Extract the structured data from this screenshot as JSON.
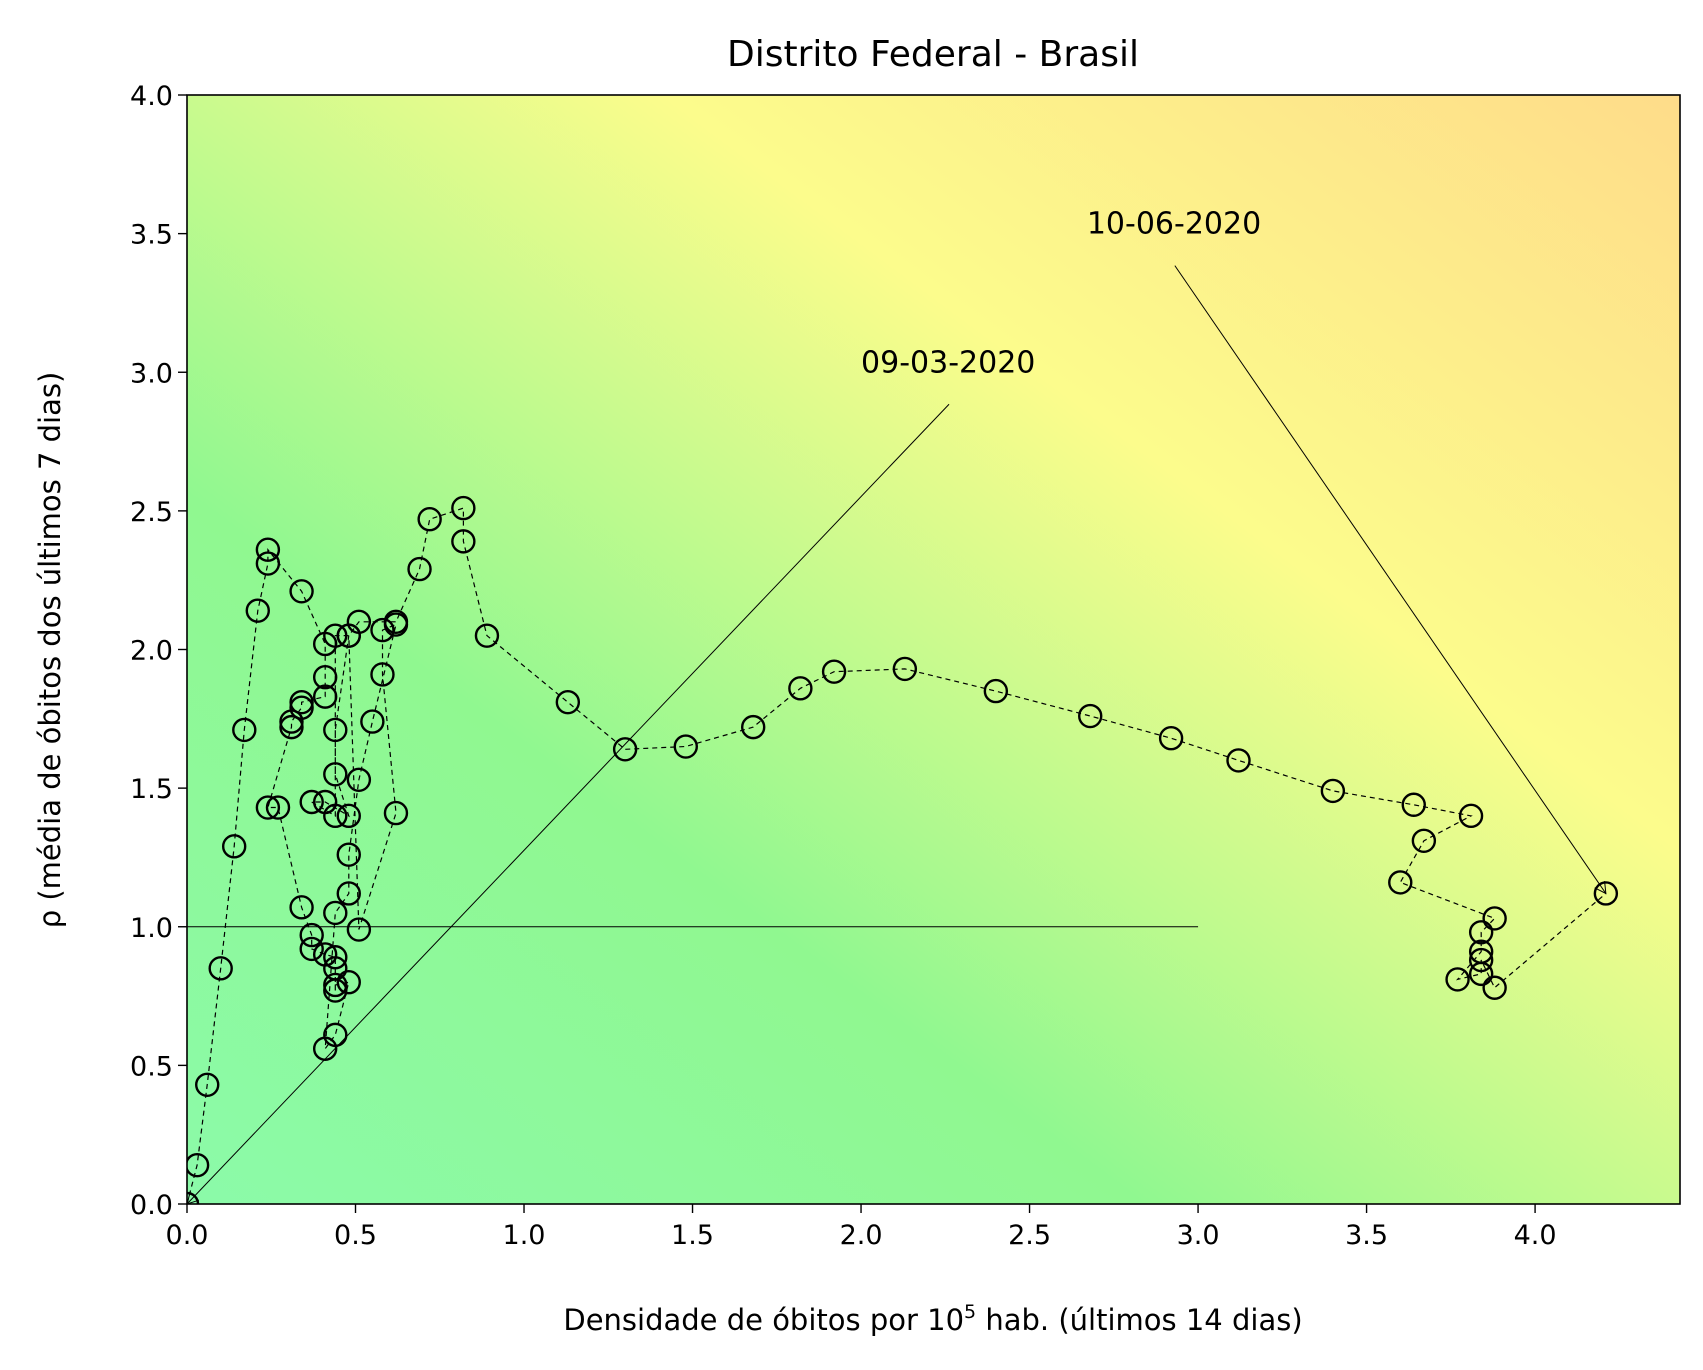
{
  "chart_data": {
    "type": "scatter",
    "title": "Distrito Federal - Brasil",
    "xlabel": "Densidade de óbitos por 10",
    "xlabel_sup": "5",
    "xlabel_suffix": " hab. (últimos 14 dias)",
    "ylabel": "ρ (média de óbitos dos últimos 7 dias)",
    "xlim": [
      0,
      4.43
    ],
    "ylim": [
      0,
      4.0
    ],
    "xticks": [
      0.0,
      0.5,
      1.0,
      1.5,
      2.0,
      2.5,
      3.0,
      3.5,
      4.0
    ],
    "xtick_labels": [
      "0.0",
      "0.5",
      "1.0",
      "1.5",
      "2.0",
      "2.5",
      "3.0",
      "3.5",
      "4.0"
    ],
    "yticks": [
      0.0,
      0.5,
      1.0,
      1.5,
      2.0,
      2.5,
      3.0,
      3.5,
      4.0
    ],
    "ytick_labels": [
      "0.0",
      "0.5",
      "1.0",
      "1.5",
      "2.0",
      "2.5",
      "3.0",
      "3.5",
      "4.0"
    ],
    "grid": false,
    "reference_line": {
      "x": [
        0,
        3.0
      ],
      "y": [
        1.0,
        1.0
      ]
    },
    "annotations": [
      {
        "text": "09-03-2020",
        "text_x": 2.0,
        "text_y": 3.0,
        "point_x": 0.0,
        "point_y": 0.0
      },
      {
        "text": "10-06-2020",
        "text_x": 2.67,
        "text_y": 3.5,
        "point_x": 4.21,
        "point_y": 1.12
      }
    ],
    "series": [
      {
        "x": [
          0.0,
          0.03,
          0.06,
          0.1,
          0.14,
          0.17,
          0.21,
          0.24,
          0.24,
          0.34,
          0.41,
          0.41,
          0.41,
          0.34,
          0.34,
          0.31,
          0.31,
          0.24,
          0.27,
          0.34,
          0.37,
          0.37,
          0.41,
          0.44,
          0.44,
          0.44,
          0.44,
          0.48,
          0.44,
          0.41,
          0.44,
          0.48,
          0.48,
          0.51,
          0.55,
          0.62,
          0.58,
          0.58,
          0.62,
          0.51,
          0.48,
          0.44,
          0.44,
          0.48,
          0.41,
          0.37,
          0.44,
          0.44,
          0.48,
          0.51,
          0.62,
          0.69,
          0.72,
          0.82,
          0.82,
          0.89,
          1.13,
          1.3,
          1.48,
          1.68,
          1.82,
          1.92,
          2.13,
          2.4,
          2.68,
          2.92,
          3.12,
          3.4,
          3.64,
          3.81,
          3.67,
          3.6,
          3.88,
          3.84,
          3.84,
          3.77,
          3.84,
          3.84,
          3.88,
          4.21
        ],
        "y": [
          0.0,
          0.14,
          0.43,
          0.85,
          1.29,
          1.71,
          2.14,
          2.31,
          2.36,
          2.21,
          2.02,
          1.9,
          1.83,
          1.81,
          1.79,
          1.74,
          1.72,
          1.43,
          1.43,
          1.07,
          0.97,
          0.92,
          0.9,
          0.89,
          0.85,
          0.77,
          0.79,
          0.8,
          0.61,
          0.56,
          1.05,
          1.12,
          1.26,
          1.53,
          1.74,
          2.09,
          2.07,
          1.91,
          1.41,
          0.99,
          2.05,
          1.71,
          1.55,
          1.4,
          1.45,
          1.45,
          1.4,
          2.05,
          2.05,
          2.1,
          2.1,
          2.29,
          2.47,
          2.51,
          2.39,
          2.05,
          1.81,
          1.64,
          1.65,
          1.72,
          1.86,
          1.92,
          1.93,
          1.85,
          1.76,
          1.68,
          1.6,
          1.49,
          1.44,
          1.4,
          1.31,
          1.16,
          1.03,
          0.98,
          0.91,
          0.81,
          0.83,
          0.88,
          0.78,
          1.12
        ]
      }
    ],
    "background": {
      "type": "gradient",
      "colors": [
        "#8bfaa9",
        "#90f890",
        "#fcfc8c",
        "#fedc8a"
      ]
    }
  }
}
